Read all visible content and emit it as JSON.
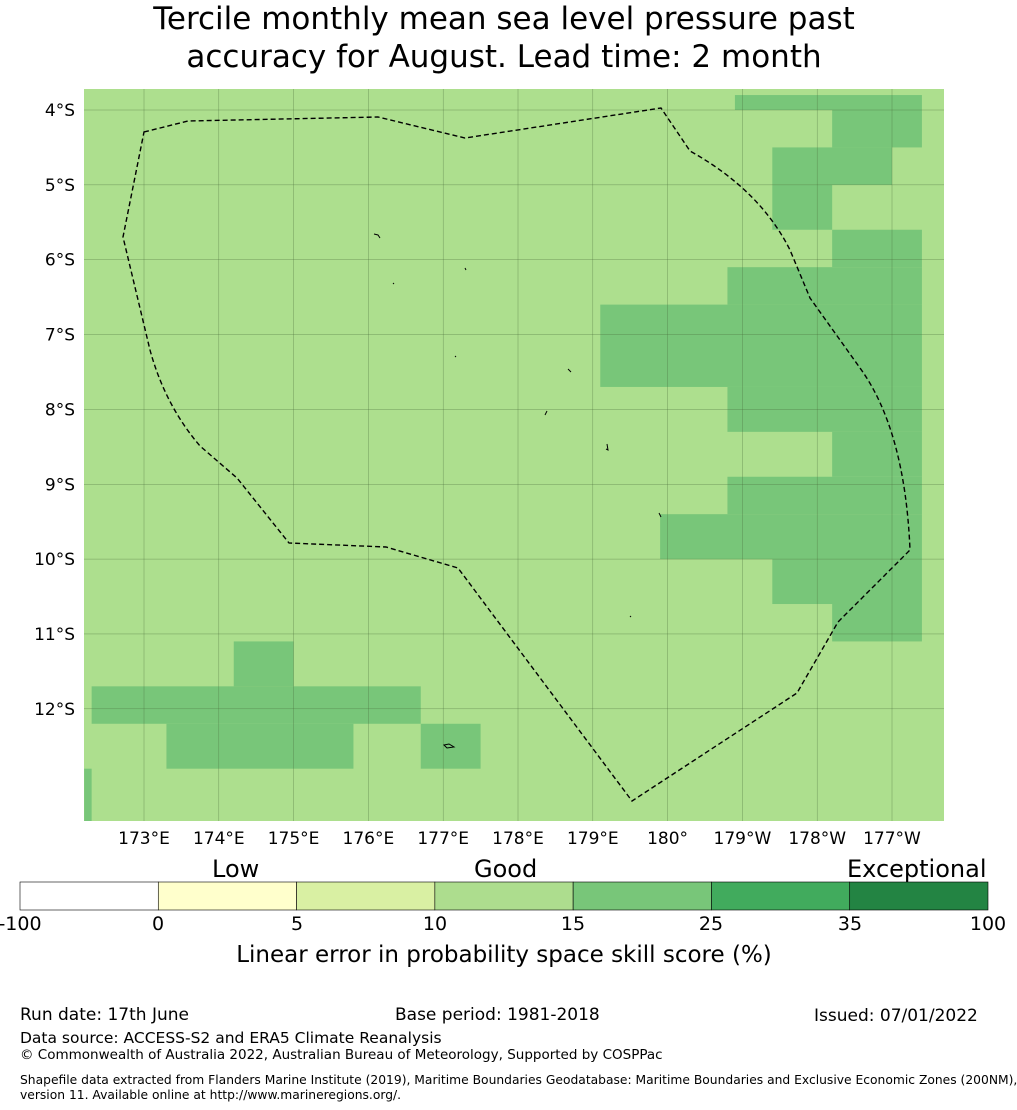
{
  "title": {
    "line1": "Tercile monthly mean sea level pressure past",
    "line2": "accuracy for August. Lead time: 2 month"
  },
  "map": {
    "lat_labels": [
      "4°S",
      "5°S",
      "6°S",
      "7°S",
      "8°S",
      "9°S",
      "10°S",
      "11°S",
      "12°S"
    ],
    "lon_labels": [
      "173°E",
      "174°E",
      "175°E",
      "176°E",
      "177°E",
      "178°E",
      "179°E",
      "180°",
      "179°W",
      "178°W",
      "177°W"
    ],
    "background_color": "#addf8e",
    "grid_cells": [
      {
        "lon_range": [
          180.9,
          183.4
        ],
        "lat_range": [
          -3.8,
          -4.0
        ],
        "level": 2
      },
      {
        "lon_range": [
          182.2,
          183.4
        ],
        "lat_range": [
          -4.0,
          -4.5
        ],
        "level": 2
      },
      {
        "lon_range": [
          181.4,
          183.0
        ],
        "lat_range": [
          -4.5,
          -5.0
        ],
        "level": 2
      },
      {
        "lon_range": [
          181.4,
          182.2
        ],
        "lat_range": [
          -5.0,
          -5.6
        ],
        "level": 2
      },
      {
        "lon_range": [
          182.2,
          183.4
        ],
        "lat_range": [
          -5.6,
          -6.1
        ],
        "level": 2
      },
      {
        "lon_range": [
          180.8,
          183.4
        ],
        "lat_range": [
          -6.1,
          -6.6
        ],
        "level": 2
      },
      {
        "lon_range": [
          179.1,
          183.4
        ],
        "lat_range": [
          -6.6,
          -7.7
        ],
        "level": 2
      },
      {
        "lon_range": [
          180.8,
          183.4
        ],
        "lat_range": [
          -7.7,
          -8.3
        ],
        "level": 2
      },
      {
        "lon_range": [
          182.2,
          183.4
        ],
        "lat_range": [
          -8.3,
          -8.9
        ],
        "level": 2
      },
      {
        "lon_range": [
          180.8,
          183.4
        ],
        "lat_range": [
          -8.9,
          -9.4
        ],
        "level": 2
      },
      {
        "lon_range": [
          179.9,
          183.4
        ],
        "lat_range": [
          -9.4,
          -10.0
        ],
        "level": 2
      },
      {
        "lon_range": [
          181.4,
          183.4
        ],
        "lat_range": [
          -10.0,
          -10.6
        ],
        "level": 2
      },
      {
        "lon_range": [
          182.2,
          183.4
        ],
        "lat_range": [
          -10.6,
          -11.1
        ],
        "level": 2
      },
      {
        "lon_range": [
          174.2,
          175.0
        ],
        "lat_range": [
          -11.1,
          -11.7
        ],
        "level": 2
      },
      {
        "lon_range": [
          172.3,
          176.7
        ],
        "lat_range": [
          -11.7,
          -12.2
        ],
        "level": 2
      },
      {
        "lon_range": [
          173.3,
          175.8
        ],
        "lat_range": [
          -12.2,
          -12.8
        ],
        "level": 2
      },
      {
        "lon_range": [
          176.7,
          177.5
        ],
        "lat_range": [
          -12.2,
          -12.8
        ],
        "level": 2
      },
      {
        "lon_range": [
          172.2,
          172.3
        ],
        "lat_range": [
          -12.8,
          -13.5
        ],
        "level": 2
      }
    ],
    "eez_boundary_style": "dashed",
    "islands": [
      "Tuvalu atolls"
    ]
  },
  "colorbar": {
    "categories": [
      {
        "label": "Low"
      },
      {
        "label": "Good"
      },
      {
        "label": "Exceptional"
      }
    ],
    "ticks": [
      "-100",
      "0",
      "5",
      "10",
      "15",
      "25",
      "35",
      "100"
    ],
    "colors": [
      "#ffffff",
      "#ffffcc",
      "#d9f0a3",
      "#addd8e",
      "#78c679",
      "#41ab5d",
      "#238443"
    ],
    "label": "Linear error in probability space skill score (%)"
  },
  "footer": {
    "run_date": "Run date: 17th June",
    "base_period": "Base period: 1981-2018",
    "issued": "Issued: 07/01/2022",
    "data_source": "Data source: ACCESS-S2 and ERA5 Climate Reanalysis",
    "copyright": "© Commonwealth of Australia 2022, Australian Bureau of Meteorology, Supported by COSPPac",
    "shapefile_line1": "Shapefile data extracted from Flanders Marine Institute (2019), Maritime Boundaries Geodatabase: Maritime Boundaries and Exclusive Economic Zones (200NM),",
    "shapefile_line2": "version 11. Available online at http://www.marineregions.org/."
  }
}
